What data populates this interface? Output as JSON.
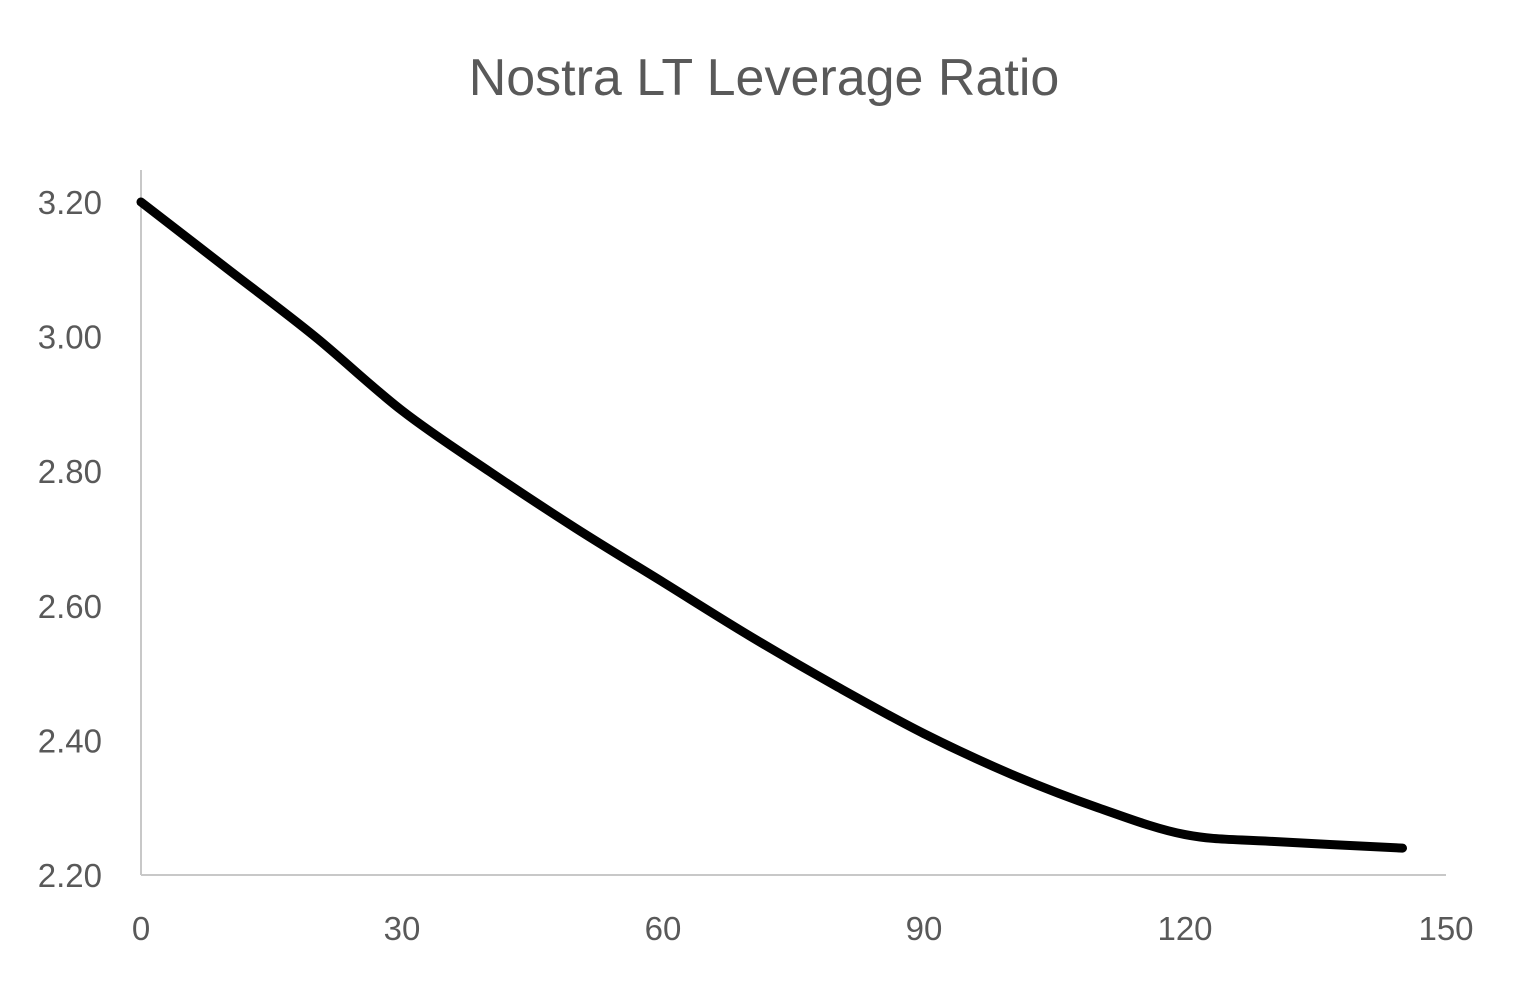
{
  "chart_data": {
    "type": "line",
    "title": "Nostra LT Leverage Ratio",
    "xlabel": "",
    "ylabel": "",
    "xlim": [
      0,
      150
    ],
    "ylim": [
      2.2,
      3.2
    ],
    "x_ticks": [
      "0",
      "30",
      "60",
      "90",
      "120",
      "150"
    ],
    "y_ticks": [
      "3.20",
      "3.00",
      "2.80",
      "2.60",
      "2.40",
      "2.20"
    ],
    "grid": false,
    "legend": "none",
    "series": [
      {
        "color": "#000000",
        "x": [
          0,
          10,
          20,
          30,
          40,
          50,
          60,
          70,
          80,
          90,
          100,
          110,
          120,
          130,
          145
        ],
        "values": [
          3.2,
          3.1,
          3.0,
          2.89,
          2.8,
          2.715,
          2.635,
          2.555,
          2.48,
          2.41,
          2.35,
          2.3,
          2.26,
          2.25,
          2.24
        ]
      }
    ]
  }
}
